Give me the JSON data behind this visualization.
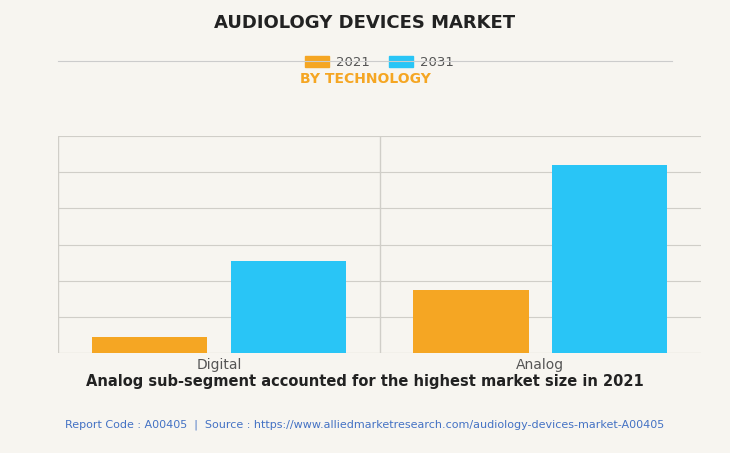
{
  "title": "AUDIOLOGY DEVICES MARKET",
  "subtitle": "BY TECHNOLOGY",
  "subtitle_color": "#F5A623",
  "categories": [
    "Digital",
    "Analog"
  ],
  "series": {
    "2021": [
      0.55,
      2.2
    ],
    "2031": [
      3.2,
      6.5
    ]
  },
  "bar_colors": {
    "2021": "#F5A623",
    "2031": "#29C5F6"
  },
  "ylim": [
    0,
    7.5
  ],
  "background_color": "#F7F5F0",
  "plot_background": "#F7F5F0",
  "grid_color": "#D0CEC8",
  "annotation": "Analog sub-segment accounted for the highest market size in 2021",
  "source_text": "Report Code : A00405  |  Source : https://www.alliedmarketresearch.com/audiology-devices-market-A00405",
  "source_color": "#4472C4",
  "title_fontsize": 13,
  "subtitle_fontsize": 10,
  "annotation_fontsize": 10.5,
  "source_fontsize": 8,
  "bar_width": 0.18,
  "group_positions": [
    0.25,
    0.75
  ]
}
